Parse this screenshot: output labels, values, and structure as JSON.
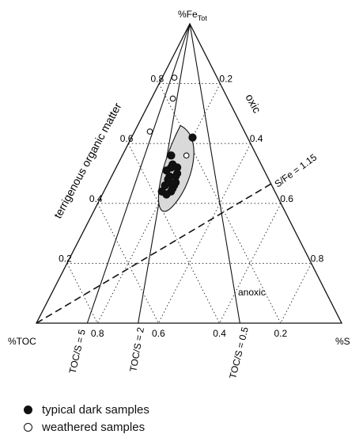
{
  "chart_data": {
    "type": "scatter",
    "subtype": "ternary",
    "vertices": {
      "top": {
        "label": "%Fe",
        "subscript": "Tot"
      },
      "left": {
        "label": "%TOC"
      },
      "right": {
        "label": "%S"
      }
    },
    "tick_labels": {
      "left_edge": [
        "0.2",
        "0.4",
        "0.6",
        "0.8"
      ],
      "right_edge": [
        "0.2",
        "0.4",
        "0.6",
        "0.8"
      ],
      "bottom_edge": [
        "0.8",
        "0.6",
        "0.4",
        "0.2"
      ]
    },
    "grid": true,
    "reference_lines": [
      {
        "label": "TOC/S = 5",
        "toc_s_ratio": 5
      },
      {
        "label": "TOC/S = 2",
        "toc_s_ratio": 2
      },
      {
        "label": "TOC/S = 0.5",
        "toc_s_ratio": 0.5
      }
    ],
    "sfe_line": {
      "label": "S/Fe = 1.15",
      "s_fe_ratio": 1.15
    },
    "region_labels": [
      "terrigenous organic matter",
      "oxic",
      "anoxic"
    ],
    "series": [
      {
        "name": "typical dark samples",
        "marker": "filled",
        "points": [
          {
            "fe": 0.62,
            "toc": 0.18,
            "s": 0.2
          },
          {
            "fe": 0.56,
            "toc": 0.28,
            "s": 0.16
          },
          {
            "fe": 0.53,
            "toc": 0.29,
            "s": 0.18
          },
          {
            "fe": 0.52,
            "toc": 0.3,
            "s": 0.18
          },
          {
            "fe": 0.51,
            "toc": 0.32,
            "s": 0.17
          },
          {
            "fe": 0.5,
            "toc": 0.29,
            "s": 0.21
          },
          {
            "fe": 0.49,
            "toc": 0.32,
            "s": 0.19
          },
          {
            "fe": 0.49,
            "toc": 0.3,
            "s": 0.21
          },
          {
            "fe": 0.48,
            "toc": 0.33,
            "s": 0.19
          },
          {
            "fe": 0.47,
            "toc": 0.33,
            "s": 0.2
          },
          {
            "fe": 0.47,
            "toc": 0.31,
            "s": 0.22
          },
          {
            "fe": 0.46,
            "toc": 0.35,
            "s": 0.19
          },
          {
            "fe": 0.46,
            "toc": 0.32,
            "s": 0.22
          },
          {
            "fe": 0.45,
            "toc": 0.33,
            "s": 0.22
          },
          {
            "fe": 0.44,
            "toc": 0.37,
            "s": 0.19
          },
          {
            "fe": 0.44,
            "toc": 0.34,
            "s": 0.22
          },
          {
            "fe": 0.43,
            "toc": 0.36,
            "s": 0.21
          },
          {
            "fe": 0.52,
            "toc": 0.28,
            "s": 0.2
          }
        ]
      },
      {
        "name": "weathered samples",
        "marker": "open",
        "points": [
          {
            "fe": 0.82,
            "toc": 0.14,
            "s": 0.04
          },
          {
            "fe": 0.75,
            "toc": 0.18,
            "s": 0.07
          },
          {
            "fe": 0.64,
            "toc": 0.31,
            "s": 0.05
          },
          {
            "fe": 0.56,
            "toc": 0.23,
            "s": 0.21
          }
        ]
      }
    ],
    "envelope": {
      "fill": "#d9d9d9",
      "stroke": "#111111"
    }
  }
}
